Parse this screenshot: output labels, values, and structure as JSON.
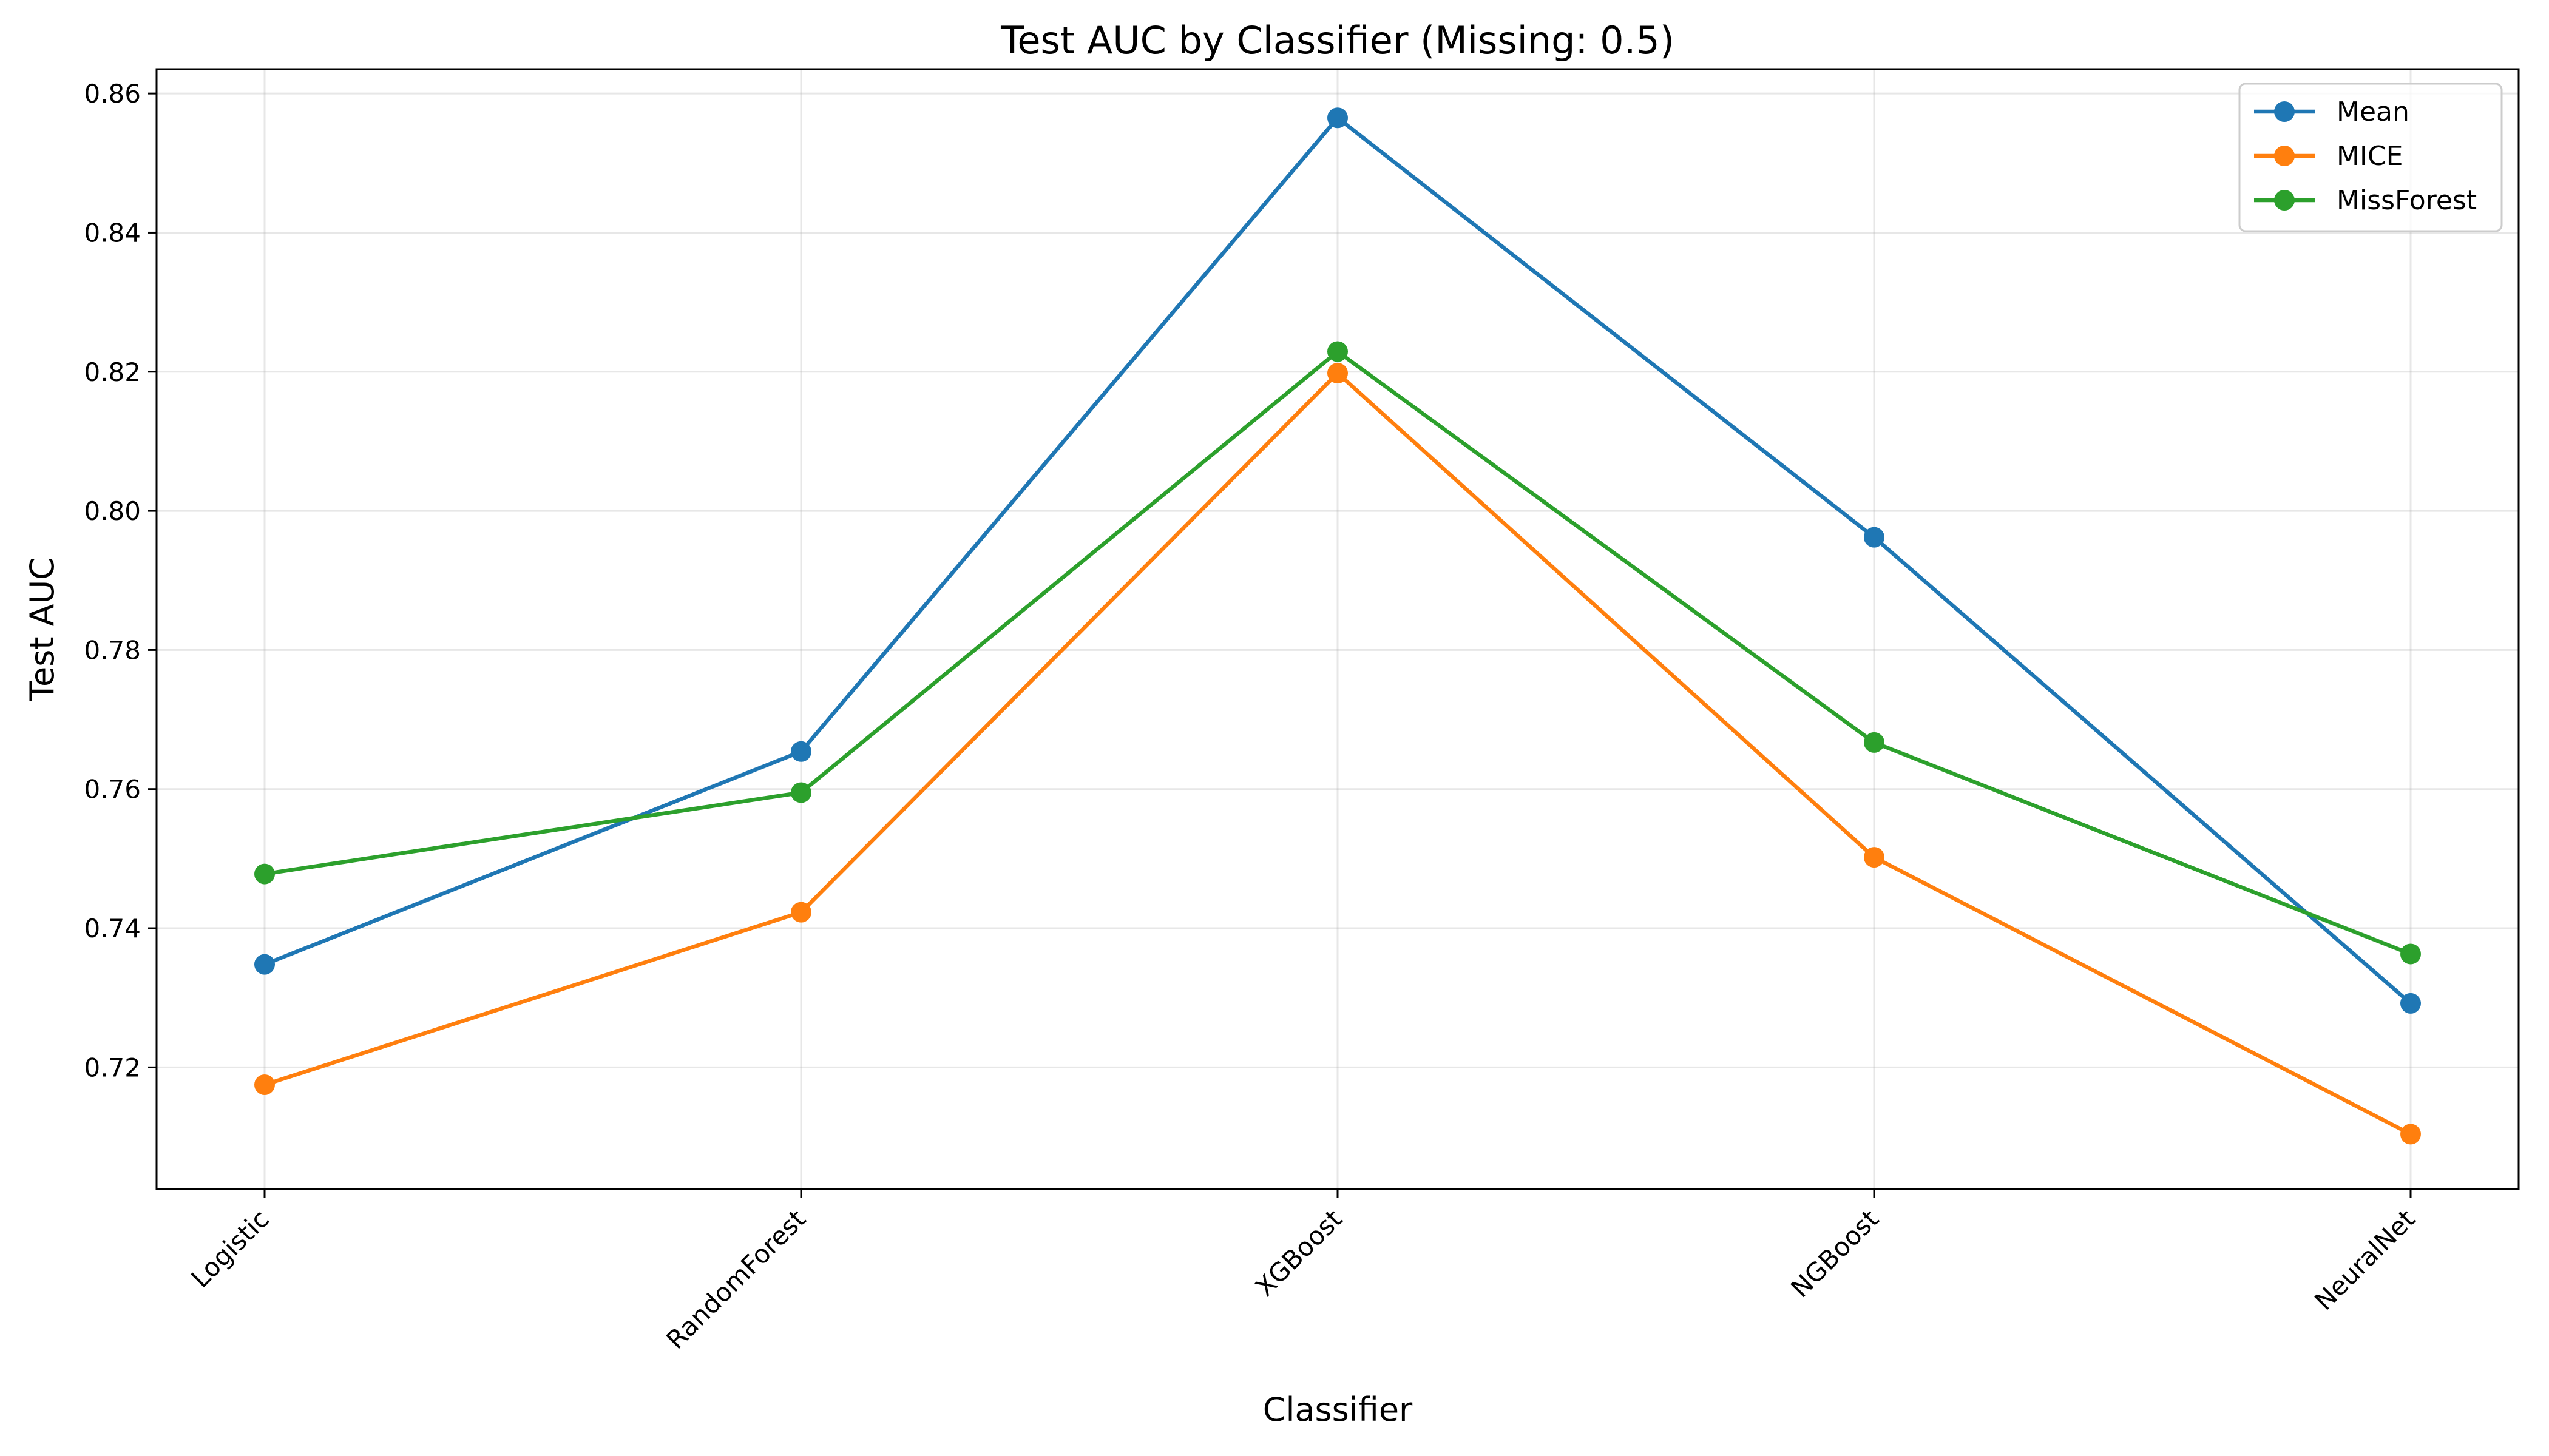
{
  "chart_data": {
    "type": "line",
    "title": "Test AUC by Classifier (Missing: 0.5)",
    "xlabel": "Classifier",
    "ylabel": "Test AUC",
    "categories": [
      "Logistic",
      "RandomForest",
      "XGBoost",
      "NGBoost",
      "NeuralNet"
    ],
    "ylim": [
      0.7025,
      0.8635
    ],
    "yticks": [
      0.72,
      0.74,
      0.76,
      0.78,
      0.8,
      0.82,
      0.84,
      0.86
    ],
    "ytick_labels": [
      "0.72",
      "0.74",
      "0.76",
      "0.78",
      "0.80",
      "0.82",
      "0.84",
      "0.86"
    ],
    "grid": true,
    "legend_position": "top-right",
    "series": [
      {
        "name": "Mean",
        "color": "#1f77b4",
        "values": [
          0.7348,
          0.7654,
          0.8565,
          0.7962,
          0.7292
        ]
      },
      {
        "name": "MICE",
        "color": "#ff7f0e",
        "values": [
          0.7175,
          0.7423,
          0.8198,
          0.7502,
          0.7104
        ]
      },
      {
        "name": "MissForest",
        "color": "#2ca02c",
        "values": [
          0.7478,
          0.7595,
          0.8229,
          0.7667,
          0.7363
        ]
      }
    ]
  }
}
